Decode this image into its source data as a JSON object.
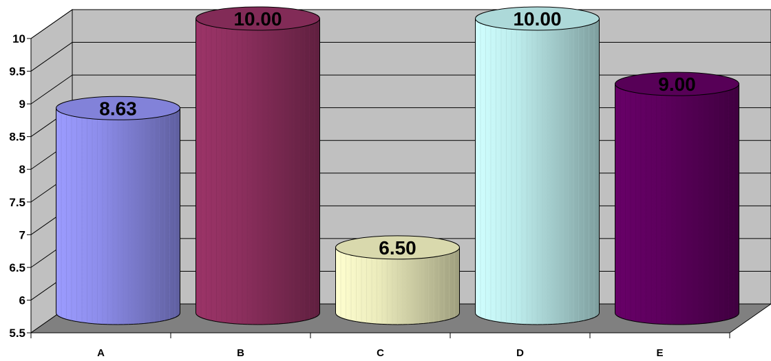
{
  "chart_data": {
    "type": "bar",
    "style": "3d-cylinder",
    "categories": [
      "A",
      "B",
      "C",
      "D",
      "E"
    ],
    "values": [
      8.63,
      10.0,
      6.5,
      10.0,
      9.0
    ],
    "data_labels": [
      "8.63",
      "10.00",
      "6.50",
      "10.00",
      "9.00"
    ],
    "ylim": [
      5.5,
      10
    ],
    "yticks": [
      "5.5",
      "6",
      "6.5",
      "7",
      "7.5",
      "8",
      "8.5",
      "9",
      "9.5",
      "10"
    ],
    "grid": true,
    "legend": "none",
    "colors": [
      "#9999FF",
      "#993366",
      "#FFFFCC",
      "#CCFFFF",
      "#660066"
    ],
    "wall_color": "#C0C0C0",
    "floor_color": "#808080"
  }
}
